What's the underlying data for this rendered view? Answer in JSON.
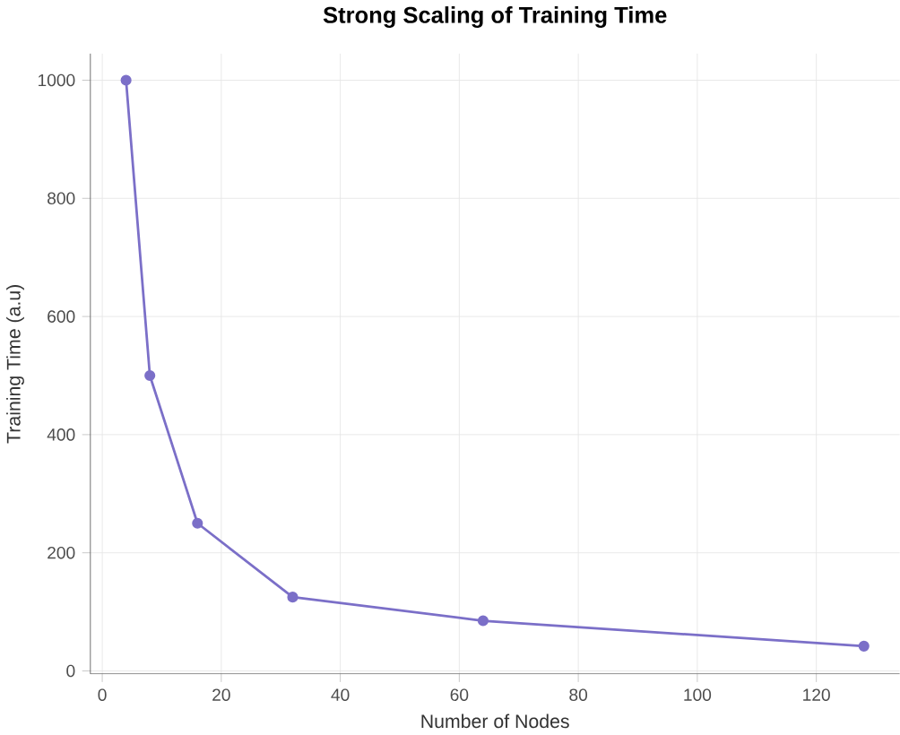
{
  "chart_data": {
    "type": "line",
    "title": "Strong Scaling of Training Time",
    "xlabel": "Number of Nodes",
    "ylabel": "Training Time (a.u)",
    "x": [
      4,
      8,
      16,
      32,
      64,
      128
    ],
    "series": [
      {
        "color": "#7b6fc8",
        "values": [
          1000,
          500,
          250,
          125,
          85,
          42
        ]
      }
    ],
    "xlim": [
      -2,
      134
    ],
    "ylim": [
      -5,
      1045
    ],
    "xticks": [
      0,
      20,
      40,
      60,
      80,
      100,
      120
    ],
    "yticks": [
      0,
      200,
      400,
      600,
      800,
      1000
    ],
    "grid": true,
    "marker": "circle",
    "line_style": "solid"
  }
}
